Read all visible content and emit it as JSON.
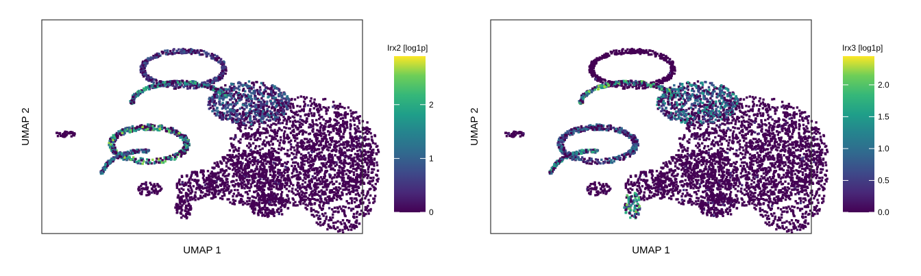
{
  "figure": {
    "description_type": "pair of UMAP hexbin expression plots"
  },
  "chart_data": [
    {
      "type": "heatmap",
      "subtype": "umap-hexbin",
      "title": "",
      "xlabel": "UMAP 1",
      "ylabel": "UMAP 2",
      "axis_ticks_shown": false,
      "grid": false,
      "legend": {
        "title": "Irx2 [log1p]",
        "placement": "right",
        "colormap": "viridis",
        "range": [
          0,
          2.9
        ],
        "ticks": [
          0,
          1,
          2
        ],
        "tick_labels": [
          "0",
          "1",
          "2"
        ]
      },
      "gene": "Irx2",
      "max_value": 2.9,
      "high_expression_regions": [
        {
          "region": "upper-left arc",
          "level": 1.8
        },
        {
          "region": "left-middle ring",
          "level": 2.3
        },
        {
          "region": "top loop",
          "level": 0.8
        },
        {
          "region": "upper-middle cluster",
          "level": 1.1
        },
        {
          "region": "far-left arc",
          "level": 1.4
        }
      ]
    },
    {
      "type": "heatmap",
      "subtype": "umap-hexbin",
      "title": "",
      "xlabel": "UMAP 1",
      "ylabel": "UMAP 2",
      "axis_ticks_shown": false,
      "grid": false,
      "legend": {
        "title": "Irx3 [log1p]",
        "placement": "right",
        "colormap": "viridis",
        "range": [
          0,
          2.45
        ],
        "ticks": [
          0,
          0.5,
          1,
          1.5,
          2
        ],
        "tick_labels": [
          "0.0",
          "0.5",
          "1.0",
          "1.5",
          "2.0"
        ]
      },
      "gene": "Irx3",
      "max_value": 2.45,
      "high_expression_regions": [
        {
          "region": "upper-left arc",
          "level": 1.9
        },
        {
          "region": "upper-middle cluster",
          "level": 1.3
        },
        {
          "region": "left-middle ring",
          "level": 1.0
        },
        {
          "region": "far-left arc",
          "level": 1.6
        },
        {
          "region": "lower island",
          "level": 1.8
        }
      ]
    }
  ]
}
